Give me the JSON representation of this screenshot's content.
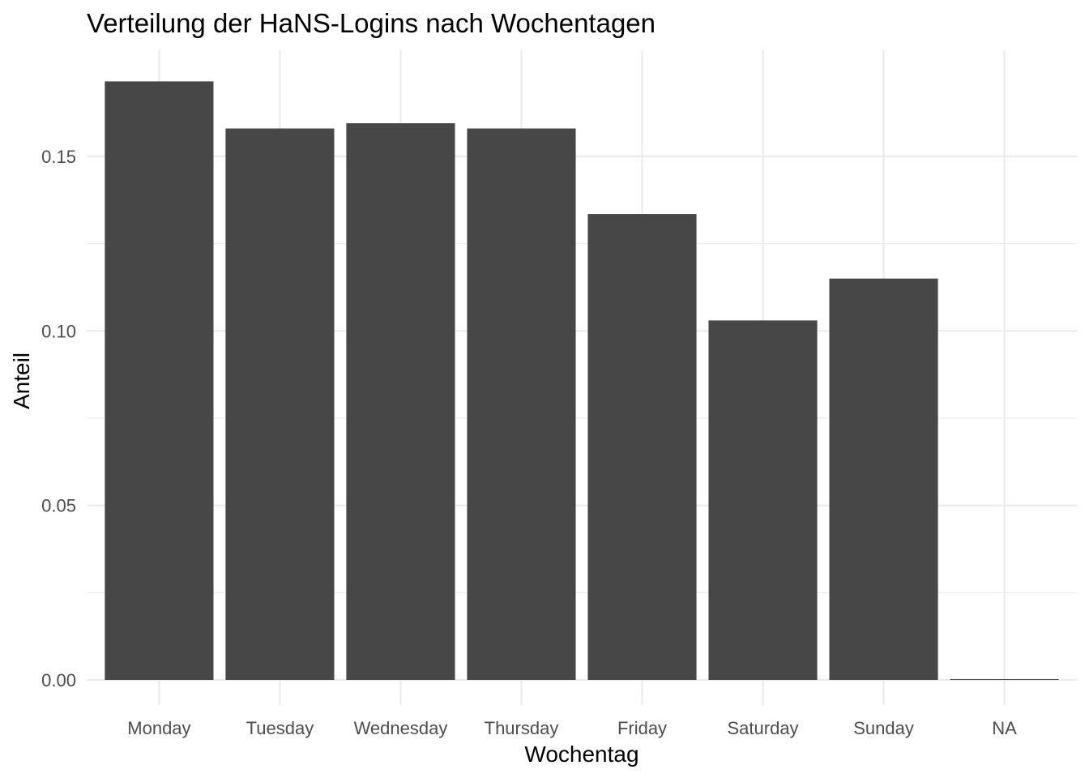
{
  "chart_data": {
    "type": "bar",
    "title": "Verteilung der HaNS-Logins nach Wochentagen",
    "xlabel": "Wochentag",
    "ylabel": "Anteil",
    "categories": [
      "Monday",
      "Tuesday",
      "Wednesday",
      "Thursday",
      "Friday",
      "Saturday",
      "Sunday",
      "NA"
    ],
    "values": [
      0.1715,
      0.158,
      0.1595,
      0.158,
      0.1335,
      0.103,
      0.115,
      0.0002
    ],
    "ylim": [
      0,
      0.1725
    ],
    "yticks": [
      0.0,
      0.05,
      0.1,
      0.15
    ],
    "ytick_labels": [
      "0.00",
      "0.05",
      "0.10",
      "0.15"
    ],
    "grid": true,
    "bar_color": "#474747",
    "grid_color": "#ebebeb"
  }
}
